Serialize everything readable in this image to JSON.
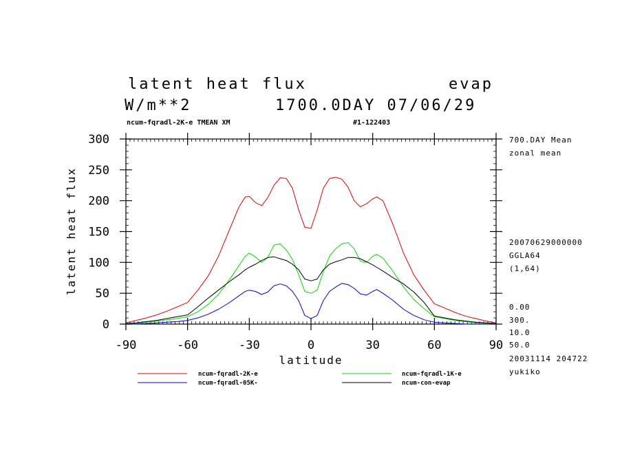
{
  "header": {
    "title_left": "latent heat flux",
    "title_right": "evap",
    "units": "W/m**2",
    "time_label": "1700.0DAY 07/06/29",
    "run_label": "ncum-fqradl-2K-e TMEAN XM",
    "run_id": "#1-122403"
  },
  "side_info": {
    "mean_label": "700.DAY Mean",
    "zonal_label": "zonal mean",
    "date_code": "20070629000000",
    "grid": "GGLA64",
    "index": "(1,64)",
    "v1": "0.00",
    "v2": "300.",
    "v3": "10.0",
    "v4": "50.0",
    "stamp": "20031114 204722",
    "user": "yukiko"
  },
  "chart_data": {
    "type": "line",
    "xlabel": "latitude",
    "ylabel": "latent heat flux",
    "xlim": [
      -90,
      90
    ],
    "ylim": [
      0,
      300
    ],
    "xticks": [
      -90,
      -60,
      -30,
      0,
      30,
      60,
      90
    ],
    "yticks": [
      0,
      50,
      100,
      150,
      200,
      250,
      300
    ],
    "legend_placement": "bottom",
    "x": [
      -90,
      -85,
      -80,
      -75,
      -70,
      -65,
      -60,
      -55,
      -50,
      -45,
      -40,
      -35,
      -32,
      -30,
      -27,
      -24,
      -21,
      -18,
      -15,
      -12,
      -9,
      -6,
      -3,
      0,
      3,
      6,
      9,
      12,
      15,
      18,
      21,
      24,
      27,
      30,
      32,
      35,
      40,
      45,
      50,
      55,
      60,
      65,
      70,
      75,
      80,
      85,
      90
    ],
    "series": [
      {
        "name": "ncum-fqradl-2K-e",
        "color": "#e00000",
        "values": [
          2,
          6,
          10,
          15,
          21,
          28,
          35,
          55,
          78,
          110,
          150,
          190,
          206,
          207,
          197,
          192,
          205,
          225,
          237,
          236,
          220,
          185,
          157,
          155,
          185,
          220,
          236,
          238,
          235,
          222,
          200,
          190,
          195,
          203,
          206,
          200,
          160,
          115,
          80,
          55,
          33,
          26,
          19,
          13,
          9,
          5,
          2
        ]
      },
      {
        "name": "ncum-fqradl-1K-e",
        "color": "#00dc00",
        "values": [
          0,
          1,
          3,
          5,
          7,
          9,
          12,
          20,
          32,
          48,
          70,
          95,
          110,
          115,
          109,
          100,
          108,
          128,
          130,
          120,
          105,
          80,
          53,
          50,
          55,
          85,
          110,
          122,
          130,
          132,
          122,
          102,
          100,
          110,
          113,
          107,
          85,
          60,
          40,
          25,
          12,
          9,
          6,
          4,
          2,
          1,
          0
        ]
      },
      {
        "name": "ncum-fqradl-05K-",
        "color": "#0000d0",
        "values": [
          0,
          0,
          1,
          2,
          3,
          4,
          6,
          10,
          16,
          24,
          34,
          46,
          53,
          55,
          53,
          48,
          52,
          62,
          65,
          62,
          53,
          38,
          14,
          9,
          14,
          38,
          53,
          60,
          66,
          64,
          58,
          49,
          47,
          53,
          56,
          50,
          38,
          24,
          14,
          7,
          3,
          2,
          1,
          0,
          0,
          0,
          0
        ]
      },
      {
        "name": "ncum-con-evap",
        "color": "#000000",
        "values": [
          1,
          2,
          4,
          6,
          9,
          12,
          15,
          28,
          42,
          55,
          68,
          80,
          88,
          92,
          97,
          103,
          108,
          109,
          106,
          103,
          97,
          88,
          73,
          70,
          73,
          88,
          97,
          101,
          104,
          108,
          108,
          106,
          101,
          96,
          92,
          86,
          75,
          65,
          52,
          35,
          13,
          10,
          7,
          5,
          3,
          2,
          1
        ]
      }
    ]
  }
}
